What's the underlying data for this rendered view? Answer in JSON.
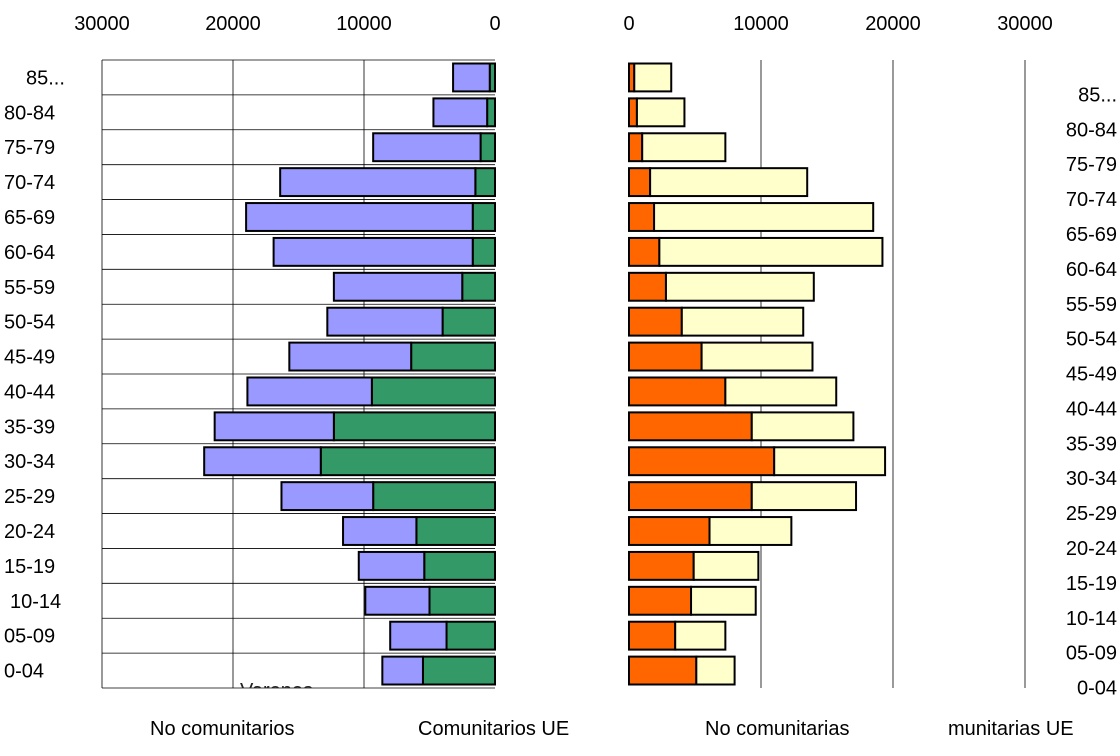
{
  "chart_data": {
    "type": "bar",
    "layout": "population-pyramid",
    "categories": [
      "0-04",
      "05-09",
      "10-14",
      "15-19",
      "20-24",
      "25-29",
      "30-34",
      "35-39",
      "40-44",
      "45-49",
      "50-54",
      "55-59",
      "60-64",
      "65-69",
      "70-74",
      "75-79",
      "80-84",
      "85..."
    ],
    "left_panel": {
      "title": "Varones",
      "xlim": [
        0,
        30000
      ],
      "xticks": [
        "30000",
        "20000",
        "10000",
        "0"
      ],
      "grid": true,
      "series": [
        {
          "name": "Comunitarios UE",
          "color": "#339966",
          "values": [
            5500,
            3700,
            5000,
            5400,
            6000,
            9300,
            13300,
            12300,
            9400,
            6400,
            4000,
            2500,
            1700,
            1700,
            1500,
            1100,
            600,
            400
          ]
        },
        {
          "name": "No comunitarios",
          "color": "#9999ff",
          "values": [
            3100,
            4300,
            4900,
            5000,
            5600,
            7000,
            8900,
            9100,
            9500,
            9300,
            8800,
            9800,
            15200,
            17300,
            14900,
            8200,
            4100,
            2800
          ]
        }
      ]
    },
    "right_panel": {
      "title": "",
      "xlim": [
        0,
        30000
      ],
      "xticks": [
        "0",
        "10000",
        "20000",
        "30000"
      ],
      "grid": true,
      "series": [
        {
          "name": "Comunitarias UE",
          "color": "#ff6600",
          "values": [
            5100,
            3500,
            4700,
            4900,
            6100,
            9300,
            11000,
            9300,
            7300,
            5500,
            4000,
            2800,
            2300,
            1900,
            1600,
            1000,
            600,
            400
          ]
        },
        {
          "name": "No comunitarias",
          "color": "#ffffcc",
          "values": [
            2900,
            3800,
            4900,
            4900,
            6200,
            7900,
            8400,
            7700,
            8400,
            8400,
            9200,
            11200,
            16900,
            16600,
            11900,
            6300,
            3600,
            2800
          ]
        }
      ]
    },
    "legend_texts": {
      "left_a": "No comunitarios",
      "left_b": "Comunitarios UE",
      "right_a": "No comunitarias",
      "right_b": "munitarias UE"
    }
  }
}
